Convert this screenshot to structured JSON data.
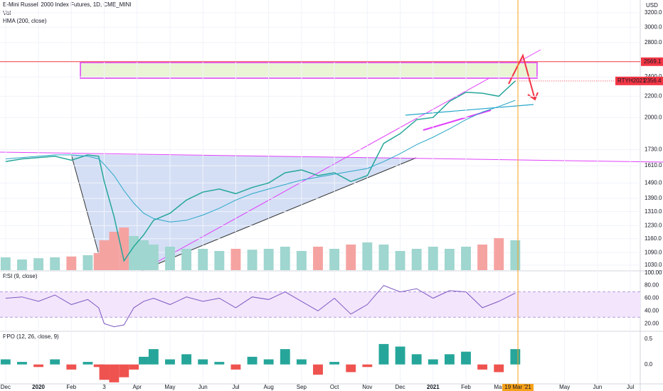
{
  "chart_data": [
    {
      "type": "line",
      "title": "E-Mini Russell 2000 Index Futures, 1D, CME_MINI",
      "currency": "USD",
      "x": [
        0,
        0.5,
        1,
        1.5,
        2,
        2.5,
        2.83,
        3,
        3.3,
        3.6,
        3.9,
        4.2,
        4.5,
        5,
        5.5,
        6,
        6.5,
        7,
        7.5,
        8,
        8.5,
        9,
        9.5,
        10,
        10.5,
        11,
        11.5,
        12,
        12.5,
        13,
        13.5,
        14,
        14.5,
        15,
        15.5
      ],
      "series": [
        {
          "name": "RTYH2021",
          "color": "#26a69a",
          "values": [
            1640,
            1660,
            1670,
            1680,
            1650,
            1690,
            1680,
            1500,
            1280,
            1050,
            1120,
            1180,
            1260,
            1300,
            1380,
            1430,
            1450,
            1420,
            1460,
            1490,
            1560,
            1580,
            1540,
            1560,
            1500,
            1540,
            1780,
            1860,
            1980,
            2000,
            2150,
            2240,
            2230,
            2200,
            2356.4
          ]
        },
        {
          "name": "HMA (200, close)",
          "color": "#2aa7c9",
          "values": [
            1660,
            1670,
            1680,
            1690,
            1690,
            1680,
            1660,
            1620,
            1540,
            1440,
            1360,
            1300,
            1270,
            1250,
            1260,
            1290,
            1330,
            1380,
            1420,
            1450,
            1480,
            1510,
            1530,
            1550,
            1570,
            1590,
            1640,
            1700,
            1770,
            1830,
            1900,
            1980,
            2050,
            2100,
            2160
          ]
        }
      ],
      "levels": [
        2569.1
      ],
      "level_color": "#f23645",
      "log": true,
      "ylim": [
        1007,
        3390
      ],
      "yticks": [
        {
          "value": 3200,
          "label": "3200.0"
        },
        {
          "value": 3000,
          "label": "3000.0"
        },
        {
          "value": 2800,
          "label": "2800.0"
        },
        {
          "value": 2400,
          "label": "2400.0"
        },
        {
          "value": 2200,
          "label": "2200.0"
        },
        {
          "value": 2000,
          "label": "2000.0"
        },
        {
          "value": 1730,
          "label": "1730.0"
        },
        {
          "value": 1610,
          "label": "1610.0"
        },
        {
          "value": 1490,
          "label": "1490.0"
        },
        {
          "value": 1390,
          "label": "1390.0"
        },
        {
          "value": 1310,
          "label": "1310.0"
        },
        {
          "value": 1230,
          "label": "1230.0"
        },
        {
          "value": 1160,
          "label": "1160.0"
        },
        {
          "value": 1090,
          "label": "1090.0"
        },
        {
          "value": 1030,
          "label": "1030.0"
        }
      ],
      "xlim": [
        -0.17,
        19.3
      ],
      "xticks": [
        {
          "value": 0,
          "label": "Dec"
        },
        {
          "value": 1,
          "label": "2020"
        },
        {
          "value": 2,
          "label": "Feb"
        },
        {
          "value": 3,
          "label": "3"
        },
        {
          "value": 4,
          "label": "Apr"
        },
        {
          "value": 5,
          "label": "May"
        },
        {
          "value": 6,
          "label": "Jun"
        },
        {
          "value": 7,
          "label": "Jul"
        },
        {
          "value": 8,
          "label": "Aug"
        },
        {
          "value": 9,
          "label": "Sep"
        },
        {
          "value": 10,
          "label": "Oct"
        },
        {
          "value": 11,
          "label": "Nov"
        },
        {
          "value": 12,
          "label": "Dec"
        },
        {
          "value": 13,
          "label": "2021"
        },
        {
          "value": 14,
          "label": "Feb"
        },
        {
          "value": 15,
          "label": "Mar"
        },
        {
          "value": 17,
          "label": "May"
        },
        {
          "value": 18,
          "label": "Jun"
        },
        {
          "value": 19,
          "label": "Jul"
        }
      ],
      "cursor": {
        "value": 15.58,
        "label": "19 Mar '21"
      }
    },
    {
      "type": "bar",
      "title": "Vol",
      "up_color": "#9fd6cf",
      "down_color": "#f5a3a1",
      "values": [
        30,
        25,
        28,
        30,
        32,
        35,
        40,
        70,
        90,
        100,
        80,
        70,
        60,
        55,
        50,
        50,
        45,
        50,
        48,
        50,
        55,
        45,
        55,
        50,
        60,
        65,
        60,
        45,
        50,
        55,
        50,
        55,
        60,
        75,
        70
      ]
    },
    {
      "type": "line",
      "title": "RSI (9, close)",
      "color": "#7e57c2",
      "values": [
        60,
        62,
        55,
        65,
        50,
        58,
        45,
        20,
        15,
        18,
        45,
        55,
        60,
        50,
        62,
        55,
        60,
        45,
        62,
        58,
        70,
        55,
        40,
        60,
        35,
        50,
        80,
        70,
        75,
        60,
        72,
        70,
        45,
        55,
        68
      ],
      "band": [
        30,
        70
      ],
      "ylim": [
        9,
        102
      ],
      "yticks": [
        {
          "value": 100,
          "label": "100.00"
        },
        {
          "value": 80,
          "label": "80.00"
        },
        {
          "value": 60,
          "label": "60.00"
        },
        {
          "value": 40,
          "label": "40.00"
        },
        {
          "value": 20,
          "label": "20.00"
        }
      ]
    },
    {
      "type": "bar",
      "title": "PPO (12, 26, close, 9)",
      "up_color": "#26a69a",
      "down_color": "#ef5350",
      "values": [
        0.1,
        0.05,
        -0.05,
        0.1,
        -0.1,
        0.05,
        -0.05,
        -0.3,
        -0.35,
        -0.25,
        -0.1,
        0.15,
        0.3,
        0.1,
        0.2,
        0.1,
        0.05,
        -0.1,
        0.15,
        0.1,
        0.3,
        0.1,
        -0.2,
        0.05,
        -0.15,
        -0.05,
        0.4,
        0.35,
        0.2,
        0.1,
        0.2,
        0.25,
        -0.1,
        -0.15,
        0.3
      ],
      "ylim": [
        -0.38,
        0.635
      ],
      "yticks": [
        0.5,
        {
          "value": 0,
          "label": "0.0"
        }
      ]
    }
  ]
}
